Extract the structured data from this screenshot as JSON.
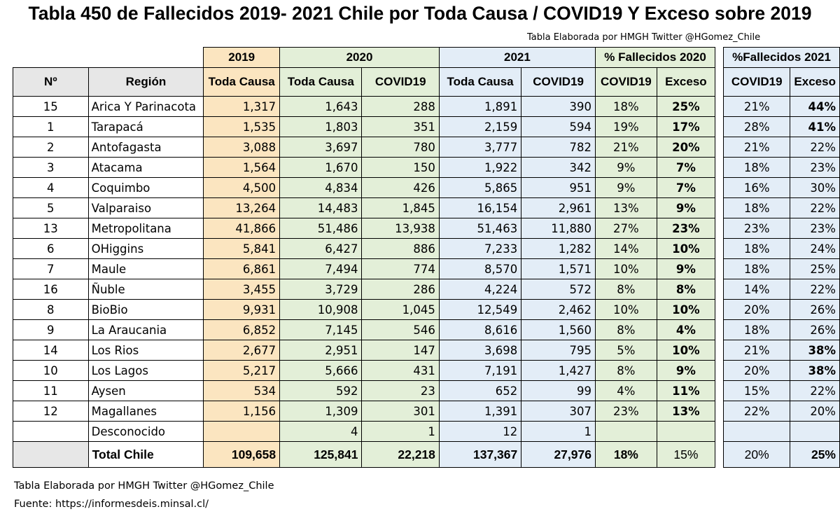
{
  "title": "Tabla 450 de Fallecidos 2019- 2021 Chile por Toda Causa / COVID19 Y Exceso sobre 2019",
  "credit_top": "Tabla Elaborada por HMGH Twitter @HGomez_Chile",
  "group_headers": {
    "y2019": "2019",
    "y2020": "2020",
    "y2021": "2021",
    "pct2020": "% Fallecidos 2020",
    "pct2021": "%Fallecidos 2021"
  },
  "column_headers": {
    "num": "Nº",
    "region": "Región",
    "total_2019": "Toda Causa",
    "total_2020": "Toda Causa",
    "covid_2020": "COVID19",
    "total_2021": "Toda Causa",
    "covid_2021": "COVID19",
    "pct_covid_2020": "COVID19",
    "pct_exceso_2020": "Exceso",
    "pct_covid_2021": "COVID19",
    "pct_exceso_2021": "Exceso"
  },
  "rows": [
    {
      "num": "15",
      "region": "Arica Y Parinacota",
      "t2019": "1,317",
      "t2020": "1,643",
      "c2020": "288",
      "t2021": "1,891",
      "c2021": "390",
      "pc2020": "18%",
      "pe2020": "25%",
      "pc2021": "21%",
      "pe2021": "44%",
      "bold2021": true
    },
    {
      "num": "1",
      "region": "Tarapacá",
      "t2019": "1,535",
      "t2020": "1,803",
      "c2020": "351",
      "t2021": "2,159",
      "c2021": "594",
      "pc2020": "19%",
      "pe2020": "17%",
      "pc2021": "28%",
      "pe2021": "41%",
      "bold2021": true
    },
    {
      "num": "2",
      "region": "Antofagasta",
      "t2019": "3,088",
      "t2020": "3,697",
      "c2020": "780",
      "t2021": "3,777",
      "c2021": "782",
      "pc2020": "21%",
      "pe2020": "20%",
      "pc2021": "21%",
      "pe2021": "22%",
      "bold2021": false
    },
    {
      "num": "3",
      "region": "Atacama",
      "t2019": "1,564",
      "t2020": "1,670",
      "c2020": "150",
      "t2021": "1,922",
      "c2021": "342",
      "pc2020": "9%",
      "pe2020": "7%",
      "pc2021": "18%",
      "pe2021": "23%",
      "bold2021": false
    },
    {
      "num": "4",
      "region": "Coquimbo",
      "t2019": "4,500",
      "t2020": "4,834",
      "c2020": "426",
      "t2021": "5,865",
      "c2021": "951",
      "pc2020": "9%",
      "pe2020": "7%",
      "pc2021": "16%",
      "pe2021": "30%",
      "bold2021": false
    },
    {
      "num": "5",
      "region": "Valparaiso",
      "t2019": "13,264",
      "t2020": "14,483",
      "c2020": "1,845",
      "t2021": "16,154",
      "c2021": "2,961",
      "pc2020": "13%",
      "pe2020": "9%",
      "pc2021": "18%",
      "pe2021": "22%",
      "bold2021": false
    },
    {
      "num": "13",
      "region": "Metropolitana",
      "t2019": "41,866",
      "t2020": "51,486",
      "c2020": "13,938",
      "t2021": "51,463",
      "c2021": "11,880",
      "pc2020": "27%",
      "pe2020": "23%",
      "pc2021": "23%",
      "pe2021": "23%",
      "bold2021": false
    },
    {
      "num": "6",
      "region": "OHiggins",
      "t2019": "5,841",
      "t2020": "6,427",
      "c2020": "886",
      "t2021": "7,233",
      "c2021": "1,282",
      "pc2020": "14%",
      "pe2020": "10%",
      "pc2021": "18%",
      "pe2021": "24%",
      "bold2021": false
    },
    {
      "num": "7",
      "region": "Maule",
      "t2019": "6,861",
      "t2020": "7,494",
      "c2020": "774",
      "t2021": "8,570",
      "c2021": "1,571",
      "pc2020": "10%",
      "pe2020": "9%",
      "pc2021": "18%",
      "pe2021": "25%",
      "bold2021": false
    },
    {
      "num": "16",
      "region": "Ñuble",
      "t2019": "3,455",
      "t2020": "3,729",
      "c2020": "286",
      "t2021": "4,224",
      "c2021": "572",
      "pc2020": "8%",
      "pe2020": "8%",
      "pc2021": "14%",
      "pe2021": "22%",
      "bold2021": false
    },
    {
      "num": "8",
      "region": "BioBio",
      "t2019": "9,931",
      "t2020": "10,908",
      "c2020": "1,045",
      "t2021": "12,549",
      "c2021": "2,462",
      "pc2020": "10%",
      "pe2020": "10%",
      "pc2021": "20%",
      "pe2021": "26%",
      "bold2021": false
    },
    {
      "num": "9",
      "region": "La Araucania",
      "t2019": "6,852",
      "t2020": "7,145",
      "c2020": "546",
      "t2021": "8,616",
      "c2021": "1,560",
      "pc2020": "8%",
      "pe2020": "4%",
      "pc2021": "18%",
      "pe2021": "26%",
      "bold2021": false
    },
    {
      "num": "14",
      "region": "Los Rios",
      "t2019": "2,677",
      "t2020": "2,951",
      "c2020": "147",
      "t2021": "3,698",
      "c2021": "795",
      "pc2020": "5%",
      "pe2020": "10%",
      "pc2021": "21%",
      "pe2021": "38%",
      "bold2021": true
    },
    {
      "num": "10",
      "region": "Los Lagos",
      "t2019": "5,217",
      "t2020": "5,666",
      "c2020": "431",
      "t2021": "7,191",
      "c2021": "1,427",
      "pc2020": "8%",
      "pe2020": "9%",
      "pc2021": "20%",
      "pe2021": "38%",
      "bold2021": true
    },
    {
      "num": "11",
      "region": "Aysen",
      "t2019": "534",
      "t2020": "592",
      "c2020": "23",
      "t2021": "652",
      "c2021": "99",
      "pc2020": "4%",
      "pe2020": "11%",
      "pc2021": "15%",
      "pe2021": "22%",
      "bold2021": false
    },
    {
      "num": "12",
      "region": "Magallanes",
      "t2019": "1,156",
      "t2020": "1,309",
      "c2020": "301",
      "t2021": "1,391",
      "c2021": "307",
      "pc2020": "23%",
      "pe2020": "13%",
      "pc2021": "22%",
      "pe2021": "20%",
      "bold2021": false
    },
    {
      "num": "",
      "region": "Desconocido",
      "t2019": "",
      "t2020": "4",
      "c2020": "1",
      "t2021": "12",
      "c2021": "1",
      "pc2020": "",
      "pe2020": "",
      "pc2021": "",
      "pe2021": "",
      "bold2021": false
    }
  ],
  "total": {
    "label": "Total Chile",
    "t2019": "109,658",
    "t2020": "125,841",
    "c2020": "22,218",
    "t2021": "137,367",
    "c2021": "27,976",
    "pc2020": "18%",
    "pe2020": "15%",
    "pc2021": "20%",
    "pe2021": "25%"
  },
  "footer": {
    "credit": "Tabla Elaborada por HMGH Twitter @HGomez_Chile",
    "source": "Fuente: https://informesdeis.minsal.cl/"
  },
  "colors": {
    "col_2019": "#fbe5c0",
    "col_2020": "#e3efd8",
    "col_2021": "#e3edf7",
    "header_gray": "#e7e7e7"
  }
}
